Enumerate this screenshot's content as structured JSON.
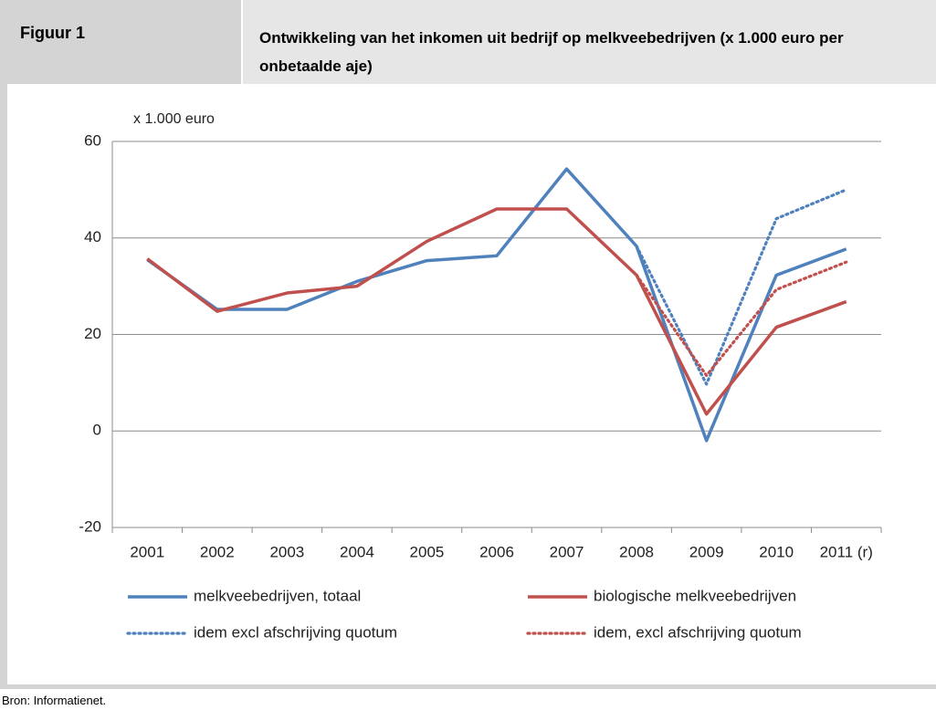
{
  "figure_label": "Figuur 1",
  "chart_data": {
    "type": "line",
    "title": "Ontwikkeling van het inkomen uit bedrijf op melkveebedrijven (x 1.000 euro per onbetaalde aje)",
    "y_label": "x 1.000 euro",
    "categories": [
      "2001",
      "2002",
      "2003",
      "2004",
      "2005",
      "2006",
      "2007",
      "2008",
      "2009",
      "2010",
      "2011 (r)"
    ],
    "series": [
      {
        "name": "melkveebedrijven, totaal",
        "color": "#4f81bd",
        "style": "solid",
        "values": [
          35.5,
          25.2,
          25.2,
          31,
          35.3,
          36.3,
          54.3,
          38.3,
          -2,
          32.3,
          37.7
        ]
      },
      {
        "name": "biologische melkveebedrijven",
        "color": "#c0504d",
        "style": "solid",
        "values": [
          35.7,
          24.8,
          28.6,
          30,
          39.3,
          46,
          46,
          32.3,
          3.5,
          21.5,
          26.8
        ]
      },
      {
        "name": "idem excl afschrijving quotum",
        "color": "#4f81bd",
        "style": "dotted",
        "values": [
          null,
          null,
          null,
          null,
          null,
          null,
          null,
          38.3,
          9.7,
          44,
          50
        ]
      },
      {
        "name": "idem, excl afschrijving quotum",
        "color": "#c0504d",
        "style": "dotted",
        "values": [
          null,
          null,
          null,
          null,
          null,
          null,
          null,
          32.3,
          11.5,
          29.3,
          35
        ]
      }
    ],
    "ylim": [
      -20,
      60
    ],
    "yticks": [
      -20,
      0,
      20,
      40,
      60
    ],
    "grid": true,
    "legend": "bottom"
  },
  "source": "Bron: Informatienet."
}
